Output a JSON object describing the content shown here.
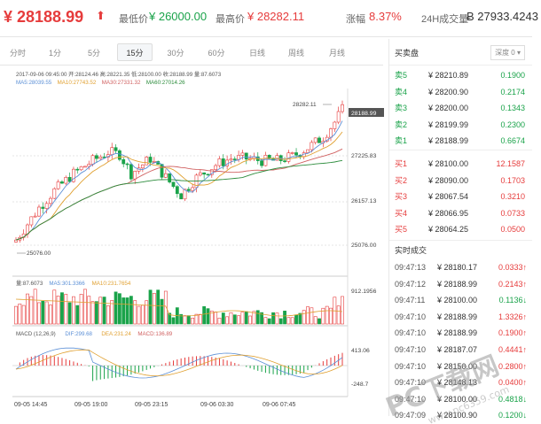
{
  "header": {
    "price": "¥ 28188.99",
    "low_label": "最低价",
    "low_value": "¥ 26000.00",
    "high_label": "最高价",
    "high_value": "¥ 28282.11",
    "change_label": "涨幅",
    "change_value": "8.37%",
    "vol_label": "24H成交量",
    "vol_value": "Ƀ 27933.4243"
  },
  "tabs": [
    "分时",
    "1分",
    "5分",
    "15分",
    "30分",
    "60分",
    "日线",
    "周线",
    "月线"
  ],
  "selected_tab": "15分",
  "chart": {
    "info_line": "2017-09-06 09:45:00   开:28124.46 高:28221.35 低:28100.00 收:28188.99 量:87.6073",
    "ma_line": [
      "MA5:28039.55",
      "MA10:27743.52",
      "MA30:27331.32",
      "MA60:27014.26"
    ],
    "price_ticks": [
      "27225.83",
      "26157.13",
      "25076.00"
    ],
    "current_price": "28188.99",
    "high_marker": "28282.11",
    "low_marker": "25076.00",
    "vol_info": [
      "量:87.6073",
      "MA5:301.3366",
      "MA10:231.7654"
    ],
    "vol_tick": "912.1956",
    "macd_info": [
      "MACD (12,26,9)",
      "DIF:299.68",
      "DEA:231.24",
      "MACD:136.89"
    ],
    "macd_ticks": [
      "413.06",
      "-248.7"
    ],
    "time_labels": [
      "09-05 14:45",
      "09-05 19:00",
      "09-05 23:15",
      "09-06 03:30",
      "09-06 07:45"
    ],
    "colors": {
      "up": "#e63c3c",
      "down": "#1aa34a",
      "ma5": "#5b8fd6",
      "ma10": "#e0a030",
      "ma30": "#d06060",
      "ma60": "#2c8c3c"
    }
  },
  "orderbook": {
    "title": "买卖盘",
    "depth": "深度 0 ▾",
    "asks": [
      {
        "label": "卖5",
        "price": "¥ 28210.89",
        "qty": "0.1900"
      },
      {
        "label": "卖4",
        "price": "¥ 28200.90",
        "qty": "0.2174"
      },
      {
        "label": "卖3",
        "price": "¥ 28200.00",
        "qty": "0.1343"
      },
      {
        "label": "卖2",
        "price": "¥ 28199.99",
        "qty": "0.2300"
      },
      {
        "label": "卖1",
        "price": "¥ 28188.99",
        "qty": "0.6674"
      }
    ],
    "bids": [
      {
        "label": "买1",
        "price": "¥ 28100.00",
        "qty": "12.1587"
      },
      {
        "label": "买2",
        "price": "¥ 28090.00",
        "qty": "0.1703"
      },
      {
        "label": "买3",
        "price": "¥ 28067.54",
        "qty": "0.3210"
      },
      {
        "label": "买4",
        "price": "¥ 28066.95",
        "qty": "0.0733"
      },
      {
        "label": "买5",
        "price": "¥ 28064.25",
        "qty": "0.0500"
      }
    ]
  },
  "trades": {
    "title": "实时成交",
    "rows": [
      {
        "time": "09:47:13",
        "price": "¥ 28180.17",
        "qty": "0.0333↑",
        "dir": "up"
      },
      {
        "time": "09:47:12",
        "price": "¥ 28188.99",
        "qty": "0.2143↑",
        "dir": "up"
      },
      {
        "time": "09:47:11",
        "price": "¥ 28100.00",
        "qty": "0.1136↓",
        "dir": "down"
      },
      {
        "time": "09:47:10",
        "price": "¥ 28188.99",
        "qty": "1.3326↑",
        "dir": "up"
      },
      {
        "time": "09:47:10",
        "price": "¥ 28188.99",
        "qty": "0.1900↑",
        "dir": "up"
      },
      {
        "time": "09:47:10",
        "price": "¥ 28187.07",
        "qty": "0.4441↑",
        "dir": "up"
      },
      {
        "time": "09:47:10",
        "price": "¥ 28150.00",
        "qty": "0.2800↑",
        "dir": "up"
      },
      {
        "time": "09:47:10",
        "price": "¥ 28148.13",
        "qty": "0.0400↑",
        "dir": "up"
      },
      {
        "time": "09:47:10",
        "price": "¥ 28100.00",
        "qty": "0.4818↓",
        "dir": "down"
      },
      {
        "time": "09:47:09",
        "price": "¥ 28100.90",
        "qty": "0.1200↓",
        "dir": "down"
      }
    ]
  },
  "watermark": "PC下载网"
}
